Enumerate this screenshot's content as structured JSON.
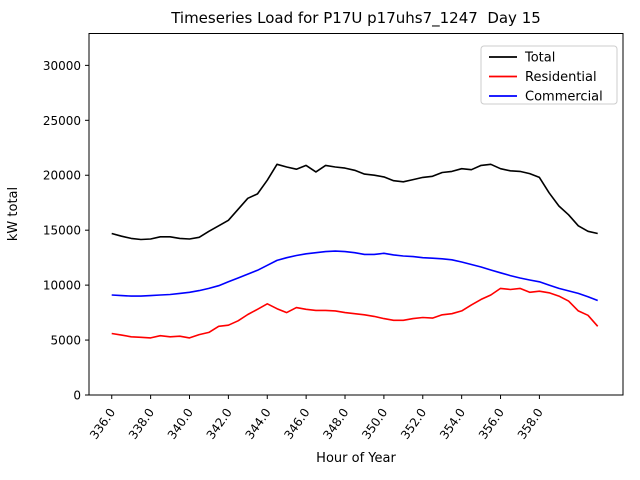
{
  "figure": {
    "background": "#ffffff",
    "title": "Timeseries Load for P17U p17uhs7_1247  Day 15"
  },
  "chart_data": {
    "type": "line",
    "title": "Timeseries Load for P17U p17uhs7_1247  Day 15",
    "xlabel": "Hour of Year",
    "ylabel": "kW total",
    "xlim": [
      334.83,
      362.3
    ],
    "ylim": [
      0,
      32900
    ],
    "grid": false,
    "legend_position": "upper right",
    "xticks": {
      "values": [
        336,
        338,
        340,
        342,
        344,
        346,
        348,
        350,
        352,
        354,
        356,
        358
      ],
      "labels": [
        "336.0",
        "338.0",
        "340.0",
        "342.0",
        "344.0",
        "346.0",
        "348.0",
        "350.0",
        "352.0",
        "354.0",
        "356.0",
        "358.0"
      ],
      "rotation": -55
    },
    "yticks": {
      "values": [
        0,
        5000,
        10000,
        15000,
        20000,
        25000,
        30000
      ],
      "labels": [
        "0",
        "5000",
        "10000",
        "15000",
        "20000",
        "25000",
        "30000"
      ]
    },
    "x": [
      336,
      336.5,
      337,
      337.5,
      338,
      338.5,
      339,
      339.5,
      340,
      340.5,
      341,
      341.5,
      342,
      342.5,
      343,
      343.5,
      344,
      344.5,
      345,
      345.5,
      346,
      346.5,
      347,
      347.5,
      348,
      348.5,
      349,
      349.5,
      350,
      350.5,
      351,
      351.5,
      352,
      352.5,
      353,
      353.5,
      354,
      354.5,
      355,
      355.5,
      356,
      356.5,
      357,
      357.5,
      358,
      358.5,
      359,
      359.5,
      360,
      360.5,
      361
    ],
    "series": [
      {
        "name": "Total",
        "color": "#000000",
        "values": [
          14700,
          14450,
          14250,
          14150,
          14200,
          14400,
          14400,
          14250,
          14200,
          14350,
          14900,
          15400,
          15900,
          16900,
          17900,
          18300,
          19550,
          21000,
          20750,
          20550,
          20900,
          20300,
          20900,
          20750,
          20650,
          20450,
          20100,
          20000,
          19850,
          19500,
          19400,
          19600,
          19800,
          19900,
          20250,
          20350,
          20600,
          20500,
          20900,
          21000,
          20600,
          20400,
          20350,
          20150,
          19800,
          18400,
          17200,
          16400,
          15400,
          14900,
          14700
        ]
      },
      {
        "name": "Residential",
        "color": "#ff0000",
        "values": [
          5600,
          5450,
          5300,
          5250,
          5200,
          5400,
          5300,
          5350,
          5200,
          5500,
          5700,
          6250,
          6350,
          6750,
          7330,
          7800,
          8300,
          7850,
          7500,
          7950,
          7800,
          7700,
          7700,
          7650,
          7500,
          7400,
          7300,
          7150,
          6950,
          6800,
          6800,
          6950,
          7050,
          7000,
          7300,
          7400,
          7650,
          8200,
          8700,
          9100,
          9700,
          9600,
          9700,
          9350,
          9450,
          9300,
          9000,
          8550,
          7650,
          7250,
          6250
        ]
      },
      {
        "name": "Commercial",
        "color": "#0000ff",
        "values": [
          9100,
          9050,
          9000,
          9000,
          9050,
          9100,
          9150,
          9250,
          9350,
          9500,
          9700,
          9950,
          10300,
          10650,
          11000,
          11350,
          11800,
          12250,
          12500,
          12700,
          12850,
          12950,
          13050,
          13100,
          13050,
          12950,
          12800,
          12800,
          12900,
          12750,
          12650,
          12600,
          12500,
          12450,
          12400,
          12300,
          12100,
          11880,
          11650,
          11380,
          11120,
          10870,
          10650,
          10470,
          10300,
          10000,
          9700,
          9470,
          9250,
          8950,
          8600
        ]
      }
    ]
  }
}
